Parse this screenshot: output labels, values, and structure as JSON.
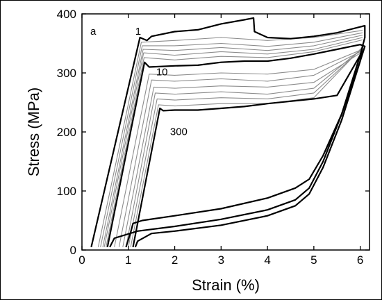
{
  "chart_data": {
    "type": "line",
    "title": "",
    "panel_label": "a",
    "xlabel": "Strain (%)",
    "ylabel": "Stress (MPa)",
    "xlim": [
      0,
      6.2
    ],
    "ylim": [
      0,
      400
    ],
    "xticks": [
      0,
      1,
      2,
      3,
      4,
      5,
      6
    ],
    "yticks": [
      0,
      100,
      200,
      300,
      400
    ],
    "grid": false,
    "legend": "none",
    "annotations": [
      {
        "text": "1",
        "x": 1.15,
        "y": 365
      },
      {
        "text": "10",
        "x": 1.6,
        "y": 296
      },
      {
        "text": "300",
        "x": 1.9,
        "y": 195
      }
    ],
    "colors": {
      "highlight": "#000000",
      "cycle": "#8c8c8c"
    },
    "series": [
      {
        "cycle": 1,
        "highlight": true,
        "x": [
          0.2,
          1.25,
          1.4,
          1.5,
          2.0,
          2.5,
          3.0,
          3.5,
          3.7,
          3.72,
          4.0,
          4.5,
          5.0,
          5.5,
          6.0,
          6.1,
          6.1,
          6.0,
          5.6,
          5.2,
          4.9,
          4.6,
          4.0,
          3.0,
          2.0,
          1.3,
          1.1,
          1.05,
          0.95
        ],
        "y": [
          5,
          360,
          355,
          362,
          370,
          373,
          383,
          390,
          393,
          370,
          360,
          358,
          362,
          368,
          378,
          380,
          360,
          330,
          230,
          160,
          120,
          105,
          88,
          70,
          58,
          50,
          45,
          30,
          5
        ]
      },
      {
        "cycle": 10,
        "highlight": true,
        "x": [
          0.55,
          1.35,
          1.45,
          2.0,
          2.5,
          3.0,
          3.5,
          4.0,
          4.5,
          5.0,
          5.5,
          6.0,
          6.1,
          6.0,
          5.6,
          5.2,
          4.9,
          4.6,
          4.0,
          3.0,
          2.0,
          1.2,
          0.7,
          0.6
        ],
        "y": [
          5,
          318,
          310,
          312,
          313,
          318,
          320,
          320,
          325,
          332,
          340,
          348,
          345,
          320,
          230,
          150,
          105,
          85,
          68,
          52,
          40,
          32,
          20,
          5
        ]
      },
      {
        "cycle": 300,
        "highlight": true,
        "x": [
          1.1,
          1.68,
          1.75,
          2.0,
          2.5,
          3.0,
          3.5,
          4.0,
          4.5,
          5.0,
          5.5,
          6.0,
          6.05,
          6.0,
          5.6,
          5.2,
          4.9,
          4.6,
          4.0,
          3.0,
          2.0,
          1.5,
          1.2,
          1.15
        ],
        "y": [
          5,
          240,
          236,
          237,
          237,
          240,
          243,
          248,
          252,
          256,
          262,
          330,
          345,
          320,
          220,
          140,
          95,
          75,
          58,
          42,
          32,
          28,
          15,
          5
        ]
      },
      {
        "cycle": 2,
        "highlight": false,
        "x": [
          0.35,
          1.28,
          2.0,
          3.0,
          4.0,
          5.0,
          6.05
        ],
        "y": [
          5,
          352,
          355,
          360,
          355,
          360,
          372
        ]
      },
      {
        "cycle": 3,
        "highlight": false,
        "x": [
          0.4,
          1.3,
          2.0,
          3.0,
          4.0,
          5.0,
          6.05
        ],
        "y": [
          5,
          346,
          346,
          350,
          345,
          352,
          368
        ]
      },
      {
        "cycle": 4,
        "highlight": false,
        "x": [
          0.45,
          1.32,
          2.0,
          3.0,
          4.0,
          5.0,
          6.05
        ],
        "y": [
          5,
          340,
          338,
          343,
          338,
          346,
          364
        ]
      },
      {
        "cycle": 5,
        "highlight": false,
        "x": [
          0.48,
          1.33,
          2.0,
          3.0,
          4.0,
          5.0,
          6.05
        ],
        "y": [
          5,
          334,
          330,
          336,
          332,
          340,
          360
        ]
      },
      {
        "cycle": 7,
        "highlight": false,
        "x": [
          0.52,
          1.34,
          2.0,
          3.0,
          4.0,
          5.0,
          6.05
        ],
        "y": [
          5,
          326,
          322,
          328,
          326,
          336,
          356
        ]
      },
      {
        "cycle": 20,
        "highlight": false,
        "x": [
          0.7,
          1.45,
          2.0,
          3.0,
          4.0,
          5.0,
          6.05
        ],
        "y": [
          5,
          298,
          296,
          300,
          298,
          306,
          340
        ]
      },
      {
        "cycle": 30,
        "highlight": false,
        "x": [
          0.8,
          1.5,
          2.0,
          3.0,
          4.0,
          5.0,
          6.05
        ],
        "y": [
          5,
          288,
          286,
          290,
          286,
          296,
          338
        ]
      },
      {
        "cycle": 50,
        "highlight": false,
        "x": [
          0.88,
          1.55,
          2.0,
          3.0,
          4.0,
          5.0,
          6.05
        ],
        "y": [
          5,
          276,
          274,
          278,
          276,
          284,
          336
        ]
      },
      {
        "cycle": 80,
        "highlight": false,
        "x": [
          0.95,
          1.58,
          2.0,
          3.0,
          4.0,
          5.0,
          6.05
        ],
        "y": [
          5,
          266,
          264,
          268,
          264,
          274,
          342
        ]
      },
      {
        "cycle": 120,
        "highlight": false,
        "x": [
          1.0,
          1.62,
          2.0,
          3.0,
          4.0,
          5.0,
          6.05
        ],
        "y": [
          5,
          256,
          254,
          258,
          256,
          266,
          342
        ]
      },
      {
        "cycle": 200,
        "highlight": false,
        "x": [
          1.05,
          1.65,
          2.0,
          3.0,
          4.0,
          5.0,
          6.05
        ],
        "y": [
          5,
          246,
          244,
          248,
          248,
          258,
          344
        ]
      }
    ]
  }
}
